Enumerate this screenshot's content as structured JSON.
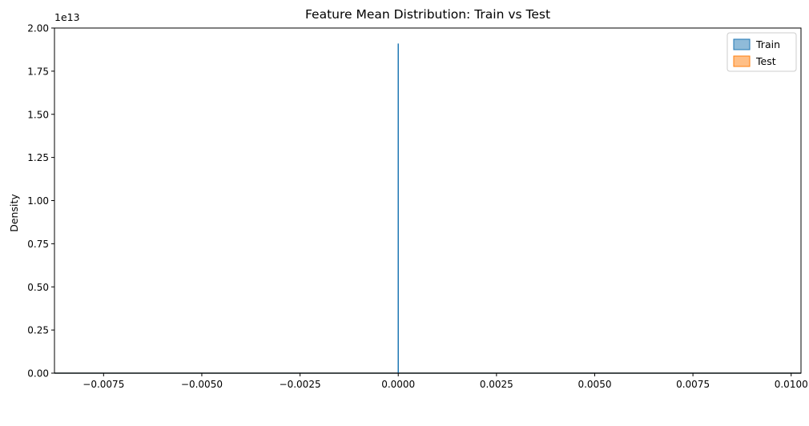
{
  "chart_data": {
    "type": "area",
    "title": "Feature Mean Distribution: Train vs Test",
    "xlabel": "",
    "ylabel": "Density",
    "y_offset_text": "1e13",
    "xlim": [
      -0.00875,
      0.01025
    ],
    "ylim": [
      0,
      20000000000000.0
    ],
    "x_ticks": [
      -0.0075,
      -0.005,
      -0.0025,
      0.0,
      0.0025,
      0.005,
      0.0075,
      0.01
    ],
    "x_tick_labels": [
      "−0.0075",
      "−0.0050",
      "−0.0025",
      "0.0000",
      "0.0025",
      "0.0050",
      "0.0075",
      "0.0100"
    ],
    "y_ticks": [
      0,
      2500000000000.0,
      5000000000000.0,
      7500000000000.0,
      10000000000000.0,
      12500000000000.0,
      15000000000000.0,
      17500000000000.0,
      20000000000000.0
    ],
    "y_tick_labels": [
      "0.00",
      "0.25",
      "0.50",
      "0.75",
      "1.00",
      "1.25",
      "1.50",
      "1.75",
      "2.00"
    ],
    "grid": false,
    "legend_position": "top-right",
    "series": [
      {
        "name": "Train",
        "color": "#1f77b4",
        "fill_color": "#8fbbd9",
        "x": [
          -0.00875,
          -1e-07,
          0.0,
          1e-07,
          0.01025
        ],
        "y": [
          0,
          0,
          19100000000000.0,
          0,
          0
        ]
      },
      {
        "name": "Test",
        "color": "#ff7f0e",
        "fill_color": "#ffbf86",
        "x": [
          -0.00875,
          0.01025
        ],
        "y": [
          0,
          0
        ]
      }
    ]
  }
}
